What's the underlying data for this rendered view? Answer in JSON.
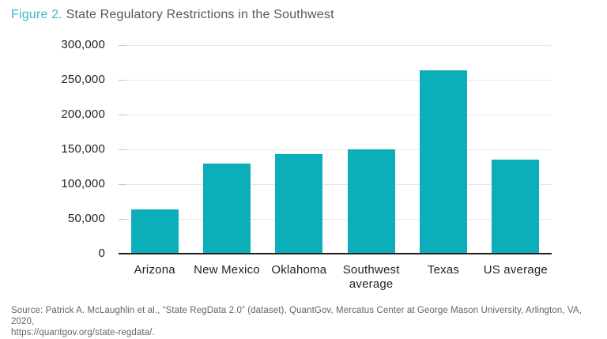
{
  "header": {
    "figure_label": "Figure 2.",
    "title": "State Regulatory Restrictions in the Southwest"
  },
  "chart_data": {
    "type": "bar",
    "title": "Figure 2. State Regulatory Restrictions in the Southwest",
    "categories": [
      "Arizona",
      "New Mexico",
      "Oklahoma",
      "Southwest average",
      "Texas",
      "US average"
    ],
    "values": [
      64000,
      129000,
      143000,
      150000,
      264000,
      135000
    ],
    "xlabel": "",
    "ylabel": "",
    "ylim": [
      0,
      300000
    ],
    "yticks": [
      0,
      50000,
      100000,
      150000,
      200000,
      250000,
      300000
    ],
    "ytick_labels": [
      "0",
      "50,000",
      "100,000",
      "150,000",
      "200,000",
      "250,000",
      "300,000"
    ],
    "grid": true,
    "legend_position": "none",
    "bar_color": "#0CAEB9"
  },
  "source": {
    "line1": "Source: Patrick A. McLaughlin et al., “State RegData 2.0” (dataset), QuantGov, Mercatus Center at George Mason University, Arlington, VA, 2020,",
    "line2": "https://quantgov.org/state-regdata/."
  },
  "colors": {
    "bar_teal": "#0CAEB9",
    "figure_label_teal": "#3DB7C9",
    "title_gray": "#55575C",
    "axis_text": "#231F20",
    "gridline": "#E9E8E8",
    "axis_line": "#1E1E1E",
    "source_gray": "#636466"
  }
}
